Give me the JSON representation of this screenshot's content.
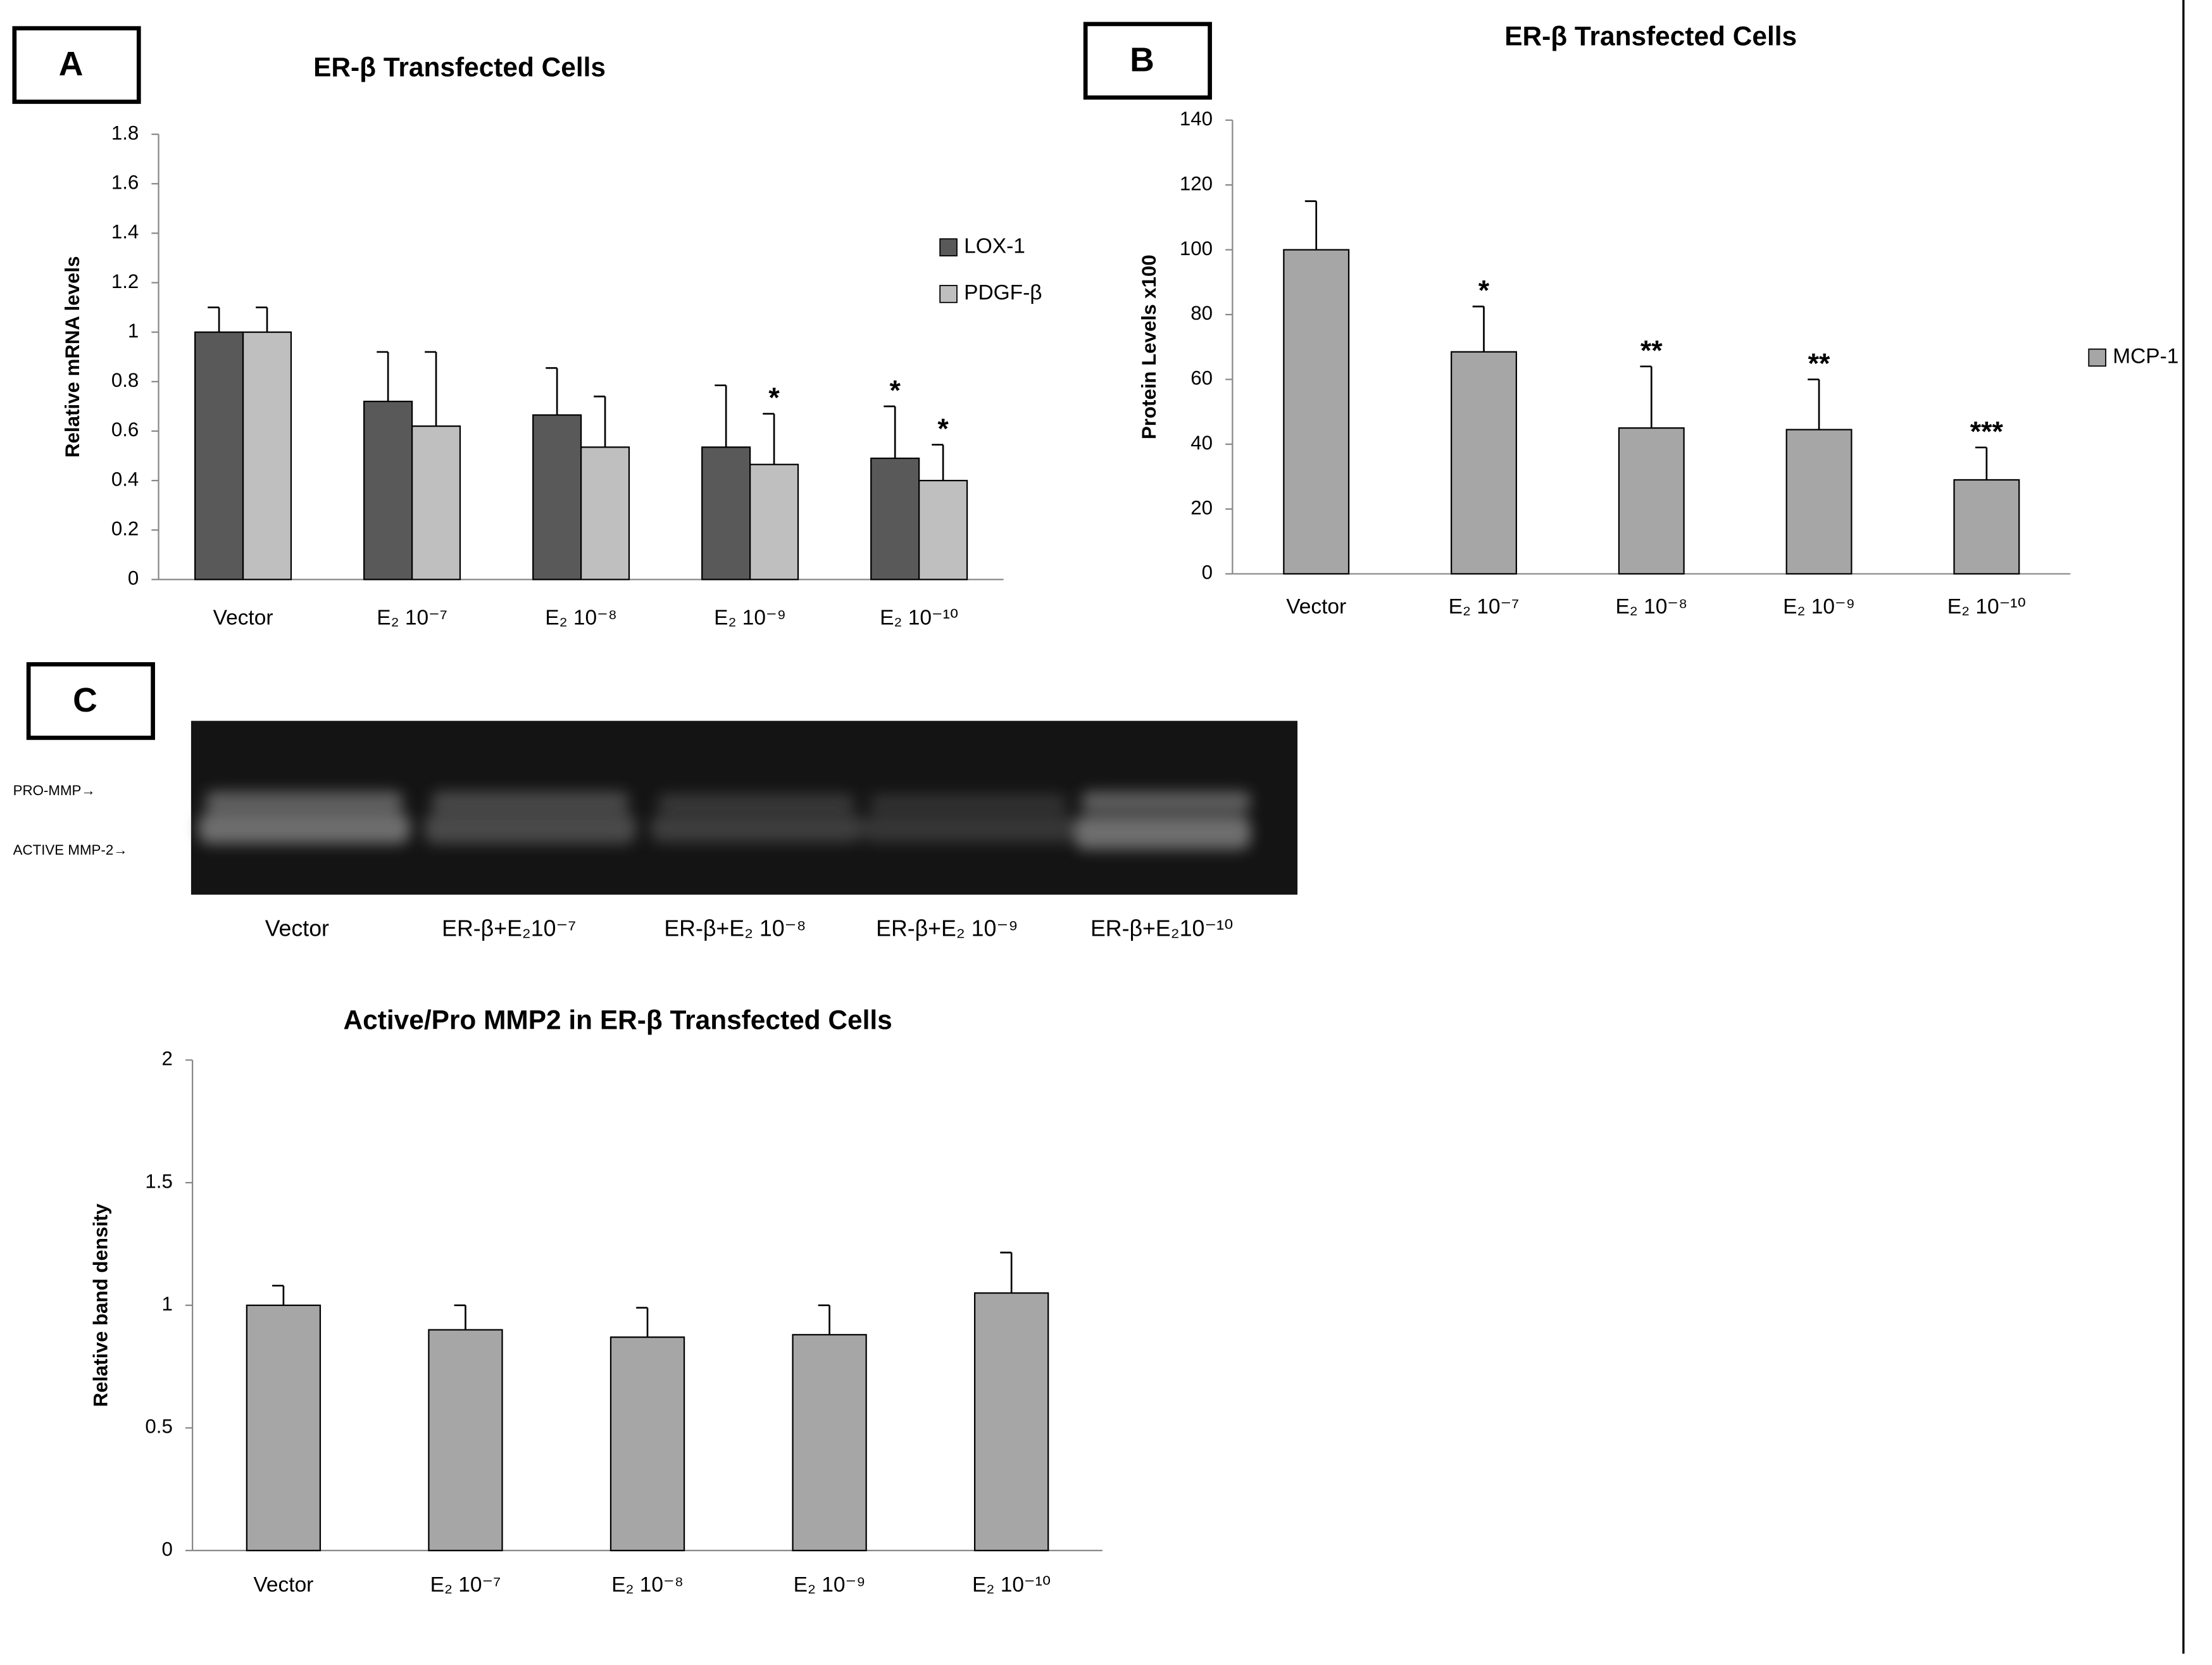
{
  "chart_data": [
    {
      "type": "bar",
      "panel": "A",
      "title": "ER-β Transfected Cells",
      "y_label": "Relative mRNA levels",
      "categories": [
        "Vector",
        "E₂ 10⁻⁷",
        "E₂ 10⁻⁸",
        "E₂ 10⁻⁹",
        "E₂ 10⁻¹⁰"
      ],
      "series": [
        {
          "name": "LOX-1",
          "color": "#595959",
          "values": [
            1,
            0.72,
            0.665,
            0.535,
            0.49
          ],
          "errors": [
            0.1,
            0.2,
            0.19,
            0.25,
            0.21
          ],
          "significance": [
            null,
            null,
            null,
            null,
            "*"
          ]
        },
        {
          "name": "PDGF-β",
          "color": "#bfbfbf",
          "values": [
            1,
            0.62,
            0.535,
            0.465,
            0.4
          ],
          "errors": [
            0.1,
            0.3,
            0.205,
            0.205,
            0.145
          ],
          "significance": [
            null,
            null,
            null,
            "*",
            "*"
          ]
        }
      ],
      "ylim": [
        0,
        1.8
      ],
      "yticks": [
        0,
        0.2,
        0.4,
        0.6,
        0.8,
        1,
        1.2,
        1.4,
        1.6,
        1.8
      ]
    },
    {
      "type": "bar",
      "panel": "B",
      "title": "ER-β Transfected Cells",
      "y_label": "Protein Levels x100",
      "categories": [
        "Vector",
        "E₂ 10⁻⁷",
        "E₂ 10⁻⁸",
        "E₂ 10⁻⁹",
        "E₂ 10⁻¹⁰"
      ],
      "series": [
        {
          "name": "MCP-1",
          "color": "#a6a6a6",
          "values": [
            100,
            68.5,
            45,
            44.5,
            29
          ],
          "errors": [
            15,
            14,
            19,
            15.5,
            10
          ],
          "significance": [
            null,
            "*",
            "**",
            "**",
            "***"
          ]
        }
      ],
      "ylim": [
        0,
        140
      ],
      "yticks": [
        0,
        20,
        40,
        60,
        80,
        100,
        120,
        140
      ]
    },
    {
      "type": "bar",
      "panel": "C",
      "title": "Active/Pro MMP2 in ER-β Transfected Cells",
      "y_label": "Relative band density",
      "categories": [
        "Vector",
        "E₂ 10⁻⁷",
        "E₂ 10⁻⁸",
        "E₂ 10⁻⁹",
        "E₂ 10⁻¹⁰"
      ],
      "color": "#a6a6a6",
      "values": [
        1,
        0.9,
        0.87,
        0.88,
        1.05
      ],
      "errors": [
        0.08,
        0.1,
        0.12,
        0.12,
        0.165
      ],
      "ylim": [
        0,
        2
      ],
      "yticks": [
        0,
        0.5,
        1,
        1.5,
        2
      ]
    }
  ],
  "gel": {
    "row_labels": [
      "PRO-MMP→",
      "ACTIVE  MMP-2→"
    ],
    "lane_labels": [
      "Vector",
      "ER-β+E₂10⁻⁷",
      "ER-β+E₂ 10⁻⁸",
      "ER-β+E₂ 10⁻⁹",
      "ER-β+E₂10⁻¹⁰"
    ]
  }
}
